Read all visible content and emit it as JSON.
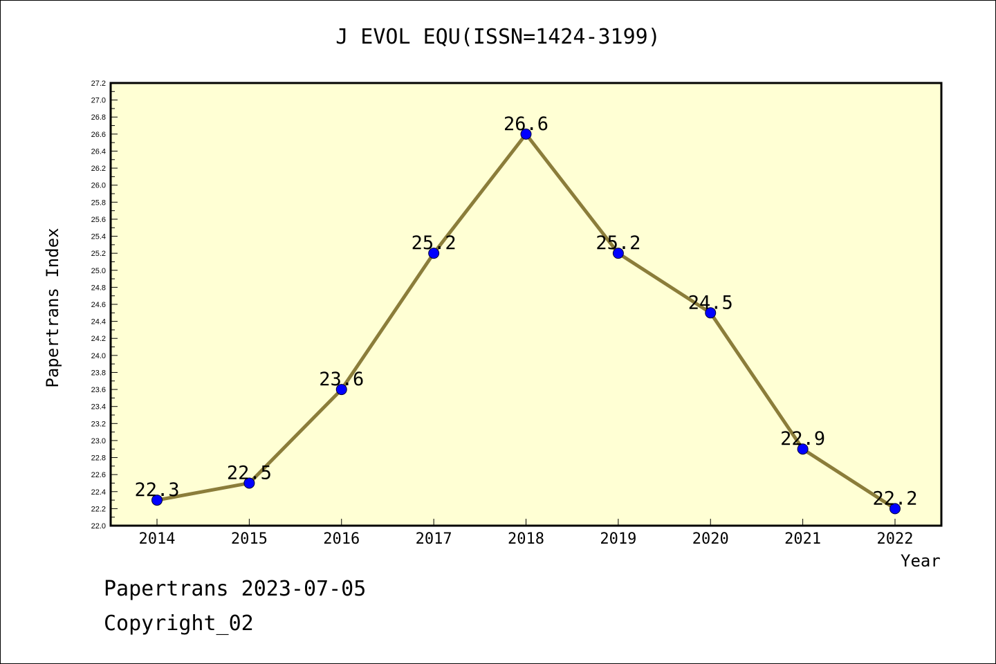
{
  "chart_data": {
    "type": "line",
    "title": "J EVOL EQU(ISSN=1424-3199)",
    "xlabel": "Year",
    "ylabel": "Papertrans Index",
    "categories": [
      "2014",
      "2015",
      "2016",
      "2017",
      "2018",
      "2019",
      "2020",
      "2021",
      "2022"
    ],
    "values": [
      22.3,
      22.5,
      23.6,
      25.2,
      26.6,
      25.2,
      24.5,
      22.9,
      22.2
    ],
    "data_labels": [
      "22.3",
      "22.5",
      "23.6",
      "25.2",
      "26.6",
      "25.2",
      "24.5",
      "22.9",
      "22.2"
    ],
    "ylim": [
      22.0,
      27.2
    ],
    "ytick_step": 0.2,
    "yticks": [
      "22.0",
      "22.2",
      "22.4",
      "22.6",
      "22.8",
      "23.0",
      "23.2",
      "23.4",
      "23.6",
      "23.8",
      "24.0",
      "24.2",
      "24.4",
      "24.6",
      "24.8",
      "25.0",
      "25.2",
      "25.4",
      "25.6",
      "25.8",
      "26.0",
      "26.2",
      "26.4",
      "26.6",
      "26.8",
      "27.0",
      "27.2"
    ],
    "grid": false,
    "colors": {
      "plot_background": "#ffffd4",
      "line": "#8b7d3a",
      "marker": "#0000ff",
      "axis": "#000000"
    }
  },
  "footer": {
    "line1": "Papertrans 2023-07-05",
    "line2": "Copyright_02"
  }
}
